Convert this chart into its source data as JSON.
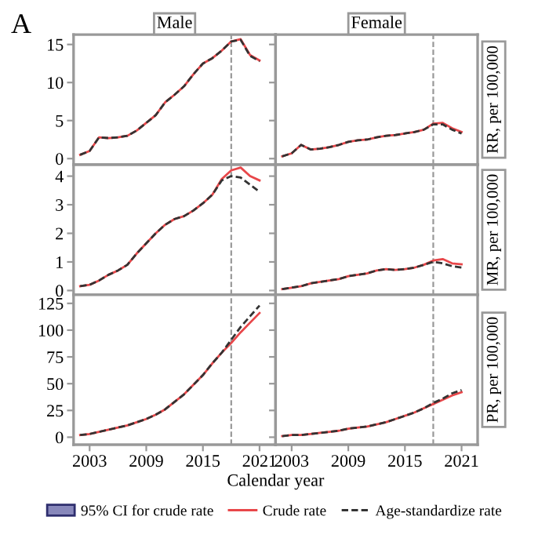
{
  "chart_data": [
    {
      "type": "line",
      "title": "Male",
      "annotations": [
        "A",
        "95% CI for crude rate"
      ],
      "x": [
        2002,
        2003,
        2004,
        2005,
        2006,
        2007,
        2008,
        2009,
        2010,
        2011,
        2012,
        2013,
        2014,
        2015,
        2016,
        2017,
        2018,
        2019,
        2020,
        2021
      ],
      "xlim": [
        2001.3,
        2022.7
      ],
      "xticks": [
        2003,
        2009,
        2015,
        2021
      ],
      "ylim": [
        -0.8,
        16.3
      ],
      "yticks": [
        0,
        5,
        10,
        15
      ],
      "tick_labels": "y",
      "legend": "bottom",
      "ref_lines": [
        {
          "axis": "x",
          "value": 2018,
          "color": "#999999",
          "line_style": "dashed"
        }
      ],
      "series": [
        {
          "name": "Crude rate",
          "color": "#e8474a",
          "line_style": "solid",
          "values": [
            0.5,
            1.0,
            2.8,
            2.7,
            2.8,
            3.0,
            3.7,
            4.7,
            5.7,
            7.4,
            8.4,
            9.5,
            11.1,
            12.5,
            13.2,
            14.2,
            15.4,
            15.7,
            13.6,
            12.9
          ]
        },
        {
          "name": "Age-standardize rate",
          "color": "#333333",
          "line_style": "dashed",
          "values": [
            0.5,
            1.0,
            2.8,
            2.7,
            2.8,
            3.0,
            3.7,
            4.7,
            5.7,
            7.4,
            8.4,
            9.5,
            11.1,
            12.5,
            13.2,
            14.2,
            15.4,
            15.6,
            13.5,
            12.8
          ]
        }
      ]
    },
    {
      "type": "line",
      "title": "Female",
      "ylabel": "RR, per 100,000",
      "x": [
        2002,
        2003,
        2004,
        2005,
        2006,
        2007,
        2008,
        2009,
        2010,
        2011,
        2012,
        2013,
        2014,
        2015,
        2016,
        2017,
        2018,
        2019,
        2020,
        2021
      ],
      "xlim": [
        2001.3,
        2022.7
      ],
      "xticks": [
        2003,
        2009,
        2015,
        2021
      ],
      "ylim": [
        -0.8,
        16.3
      ],
      "yticks": [
        0,
        5,
        10,
        15
      ],
      "tick_labels": false,
      "legend": false,
      "ref_lines": [
        {
          "axis": "x",
          "value": 2018,
          "color": "#999999",
          "line_style": "dashed"
        }
      ],
      "series": [
        {
          "color": "#e8474a",
          "line_style": "solid",
          "values": [
            0.3,
            0.7,
            1.8,
            1.2,
            1.3,
            1.5,
            1.8,
            2.2,
            2.4,
            2.5,
            2.8,
            3.0,
            3.1,
            3.3,
            3.5,
            3.8,
            4.6,
            4.7,
            4.0,
            3.5
          ]
        },
        {
          "color": "#333333",
          "line_style": "dashed",
          "values": [
            0.3,
            0.7,
            1.8,
            1.2,
            1.3,
            1.5,
            1.8,
            2.2,
            2.4,
            2.5,
            2.8,
            3.0,
            3.1,
            3.3,
            3.5,
            3.8,
            4.5,
            4.5,
            3.8,
            3.3
          ]
        }
      ]
    },
    {
      "type": "line",
      "x": [
        2002,
        2003,
        2004,
        2005,
        2006,
        2007,
        2008,
        2009,
        2010,
        2011,
        2012,
        2013,
        2014,
        2015,
        2016,
        2017,
        2018,
        2019,
        2020,
        2021
      ],
      "xlim": [
        2001.3,
        2022.7
      ],
      "xticks": [
        2003,
        2009,
        2015,
        2021
      ],
      "ylim": [
        -0.15,
        4.4
      ],
      "yticks": [
        0,
        1,
        2,
        3,
        4
      ],
      "tick_labels": "y",
      "legend": false,
      "ref_lines": [
        {
          "axis": "x",
          "value": 2018,
          "color": "#999999",
          "line_style": "dashed"
        }
      ],
      "series": [
        {
          "color": "#e8474a",
          "line_style": "solid",
          "values": [
            0.15,
            0.2,
            0.35,
            0.55,
            0.7,
            0.9,
            1.3,
            1.65,
            2.0,
            2.3,
            2.5,
            2.6,
            2.8,
            3.05,
            3.35,
            3.9,
            4.2,
            4.3,
            4.0,
            3.85
          ]
        },
        {
          "color": "#333333",
          "line_style": "dashed",
          "values": [
            0.15,
            0.2,
            0.35,
            0.55,
            0.7,
            0.9,
            1.3,
            1.65,
            2.0,
            2.3,
            2.5,
            2.6,
            2.8,
            3.05,
            3.35,
            3.85,
            4.0,
            3.95,
            3.7,
            3.45
          ]
        }
      ]
    },
    {
      "type": "line",
      "ylabel": "MR, per 100,000",
      "x": [
        2002,
        2003,
        2004,
        2005,
        2006,
        2007,
        2008,
        2009,
        2010,
        2011,
        2012,
        2013,
        2014,
        2015,
        2016,
        2017,
        2018,
        2019,
        2020,
        2021
      ],
      "xlim": [
        2001.3,
        2022.7
      ],
      "xticks": [
        2003,
        2009,
        2015,
        2021
      ],
      "ylim": [
        -0.15,
        4.4
      ],
      "yticks": [
        0,
        1,
        2,
        3,
        4
      ],
      "tick_labels": false,
      "legend": false,
      "ref_lines": [
        {
          "axis": "x",
          "value": 2018,
          "color": "#999999",
          "line_style": "dashed"
        }
      ],
      "series": [
        {
          "color": "#e8474a",
          "line_style": "solid",
          "values": [
            0.05,
            0.1,
            0.15,
            0.25,
            0.3,
            0.35,
            0.4,
            0.5,
            0.55,
            0.6,
            0.7,
            0.75,
            0.72,
            0.75,
            0.8,
            0.9,
            1.05,
            1.1,
            0.95,
            0.92
          ]
        },
        {
          "color": "#333333",
          "line_style": "dashed",
          "values": [
            0.05,
            0.1,
            0.15,
            0.25,
            0.3,
            0.35,
            0.4,
            0.5,
            0.55,
            0.6,
            0.7,
            0.75,
            0.72,
            0.75,
            0.8,
            0.9,
            1.0,
            0.95,
            0.85,
            0.8
          ]
        }
      ]
    },
    {
      "type": "line",
      "xlabel": "Calendar year",
      "x": [
        2002,
        2003,
        2004,
        2005,
        2006,
        2007,
        2008,
        2009,
        2010,
        2011,
        2012,
        2013,
        2014,
        2015,
        2016,
        2017,
        2018,
        2019,
        2020,
        2021
      ],
      "xlim": [
        2001.3,
        2022.7
      ],
      "xticks": [
        2003,
        2009,
        2015,
        2021
      ],
      "ylim": [
        -7,
        133
      ],
      "yticks": [
        0,
        25,
        50,
        75,
        100,
        125
      ],
      "ref_lines": [
        {
          "axis": "x",
          "value": 2018,
          "color": "#999999",
          "line_style": "dashed"
        }
      ],
      "series": [
        {
          "color": "#e8474a",
          "line_style": "solid",
          "values": [
            2,
            3,
            5,
            7,
            9,
            11,
            14,
            17,
            21,
            26,
            33,
            40,
            49,
            58,
            69,
            79,
            88,
            98,
            107,
            116
          ]
        },
        {
          "color": "#333333",
          "line_style": "dashed",
          "values": [
            2,
            3,
            5,
            7,
            9,
            11,
            14,
            17,
            21,
            26,
            33,
            40,
            49,
            58,
            69,
            79,
            91,
            103,
            113,
            123
          ]
        }
      ]
    },
    {
      "type": "line",
      "ylabel": "PR, per 100,000",
      "x": [
        2002,
        2003,
        2004,
        2005,
        2006,
        2007,
        2008,
        2009,
        2010,
        2011,
        2012,
        2013,
        2014,
        2015,
        2016,
        2017,
        2018,
        2019,
        2020,
        2021
      ],
      "xlim": [
        2001.3,
        2022.7
      ],
      "xticks": [
        2003,
        2009,
        2015,
        2021
      ],
      "ylim": [
        -7,
        133
      ],
      "yticks": [
        0,
        25,
        50,
        75,
        100,
        125
      ],
      "tick_labels": "x",
      "legend": false,
      "ref_lines": [
        {
          "axis": "x",
          "value": 2018,
          "color": "#999999",
          "line_style": "dashed"
        }
      ],
      "series": [
        {
          "color": "#e8474a",
          "line_style": "solid",
          "values": [
            1,
            2,
            2,
            3,
            4,
            5,
            6,
            8,
            9,
            10,
            12,
            14,
            17,
            20,
            23,
            27,
            31,
            35,
            39,
            42
          ]
        },
        {
          "color": "#333333",
          "line_style": "dashed",
          "values": [
            1,
            2,
            2,
            3,
            4,
            5,
            6,
            8,
            9,
            10,
            12,
            14,
            17,
            20,
            23,
            27,
            32,
            36,
            41,
            44
          ]
        }
      ]
    }
  ]
}
